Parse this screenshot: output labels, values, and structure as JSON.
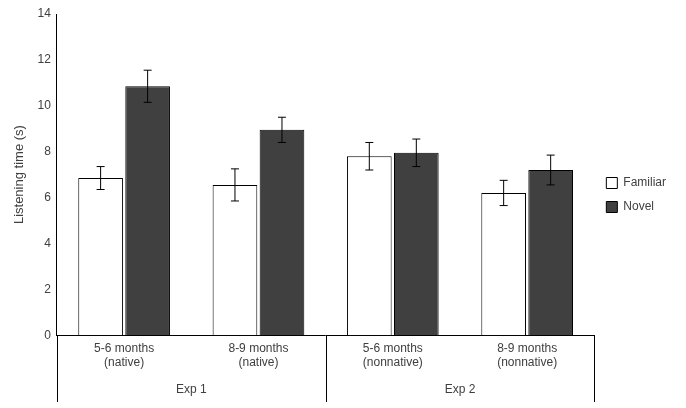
{
  "chart_data": {
    "type": "bar",
    "y_label": "Listening time (s)",
    "categories": [
      [
        "5-6 months",
        "(native)"
      ],
      [
        "8-9 months",
        "(native)"
      ],
      [
        "5-6 months",
        "(nonnative)"
      ],
      [
        "8-9 months",
        "(nonnative)"
      ]
    ],
    "groups": [
      "Exp 1",
      "Exp 1",
      "Exp 2",
      "Exp 2"
    ],
    "series": [
      {
        "name": "Familiar",
        "color": "#ffffff",
        "values": [
          6.85,
          6.55,
          7.8,
          6.2
        ],
        "errors": [
          0.5,
          0.7,
          0.6,
          0.55
        ]
      },
      {
        "name": "Novel",
        "color": "#404040",
        "values": [
          10.85,
          8.95,
          7.95,
          7.2
        ],
        "errors": [
          0.7,
          0.55,
          0.6,
          0.65
        ]
      }
    ],
    "ylim": [
      0,
      14
    ],
    "yticks": [
      0,
      2,
      4,
      6,
      8,
      10,
      12,
      14
    ],
    "grid": false,
    "legend": "right"
  }
}
